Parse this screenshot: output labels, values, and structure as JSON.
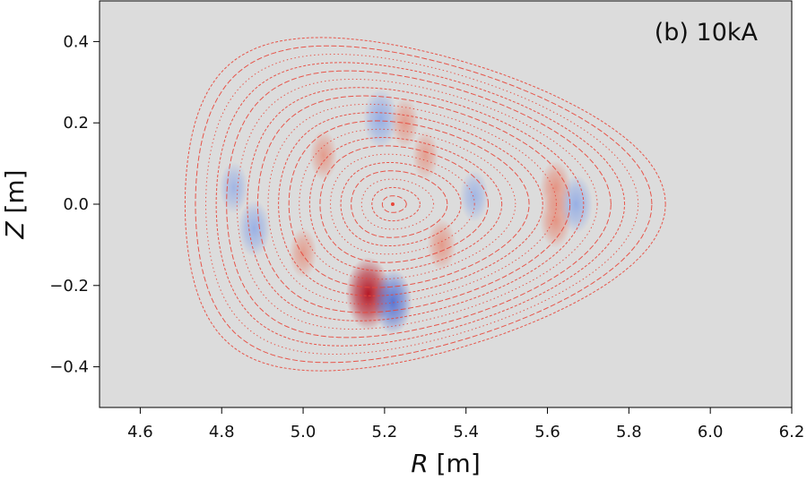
{
  "chart_data": {
    "type": "contour",
    "panel_label": "(b) 10kA",
    "xlabel_symbol": "R",
    "xlabel_unit": "[m]",
    "ylabel_symbol": "Z",
    "ylabel_unit": "[m]",
    "xlim": [
      4.5,
      6.2
    ],
    "ylim": [
      -0.5,
      0.5
    ],
    "xticks": [
      4.6,
      4.8,
      5.0,
      5.2,
      5.4,
      5.6,
      5.8,
      6.0,
      6.2
    ],
    "xtick_labels": [
      "4.6",
      "4.8",
      "5.0",
      "5.2",
      "5.4",
      "5.6",
      "5.8",
      "6.0",
      "6.2"
    ],
    "yticks": [
      -0.4,
      -0.2,
      0.0,
      0.2,
      0.4
    ],
    "ytick_labels": [
      "−0.4",
      "−0.2",
      "0.0",
      "0.2",
      "0.4"
    ],
    "background_color": "#dcdcdc",
    "contour_color": "#e8463a",
    "colormap": "coolwarm",
    "magnetic_axis": {
      "R": 5.22,
      "Z": 0.0
    },
    "boundary": {
      "R_inner": 4.71,
      "R_outer": 5.89,
      "Z_top": 0.41,
      "Z_bottom": -0.41
    },
    "flux_surface_count": 20,
    "perturbation_blobs": [
      {
        "R": 5.16,
        "Z": -0.22,
        "amplitude": 1.0
      },
      {
        "R": 5.22,
        "Z": -0.24,
        "amplitude": -0.75
      },
      {
        "R": 5.19,
        "Z": 0.21,
        "amplitude": -0.6
      },
      {
        "R": 5.25,
        "Z": 0.2,
        "amplitude": 0.3
      },
      {
        "R": 5.67,
        "Z": 0.0,
        "amplitude": -0.55
      },
      {
        "R": 5.62,
        "Z": 0.04,
        "amplitude": 0.45
      },
      {
        "R": 5.62,
        "Z": -0.04,
        "amplitude": 0.45
      },
      {
        "R": 4.88,
        "Z": -0.06,
        "amplitude": -0.5
      },
      {
        "R": 4.83,
        "Z": 0.04,
        "amplitude": -0.35
      },
      {
        "R": 5.42,
        "Z": 0.02,
        "amplitude": -0.35
      },
      {
        "R": 5.34,
        "Z": -0.1,
        "amplitude": 0.35
      },
      {
        "R": 5.05,
        "Z": 0.12,
        "amplitude": 0.3
      },
      {
        "R": 5.0,
        "Z": -0.12,
        "amplitude": 0.3
      },
      {
        "R": 5.3,
        "Z": 0.12,
        "amplitude": 0.25
      }
    ]
  }
}
